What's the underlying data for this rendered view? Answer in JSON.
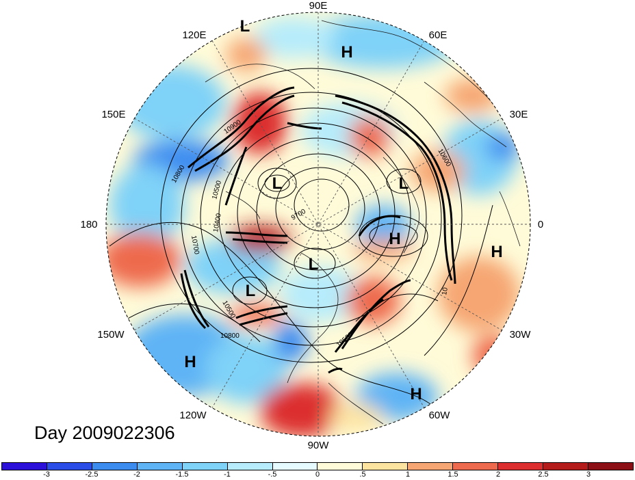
{
  "title": "Day 2009022306",
  "longitude_labels": [
    "90E",
    "60E",
    "30E",
    "0",
    "30W",
    "60W",
    "90W",
    "120W",
    "150W",
    "180",
    "150E",
    "120E"
  ],
  "pressure_systems": [
    "L",
    "H",
    "L",
    "L",
    "H",
    "H",
    "L",
    "L",
    "H",
    "H"
  ],
  "contour_labels": [
    "10900",
    "10800",
    "10500",
    "10400",
    "10700",
    "10500",
    "10800",
    "10500",
    "10600",
    "9700",
    "10"
  ],
  "colorbar": {
    "ticks": [
      "-3",
      "-2.5",
      "-2",
      "-1.5",
      "-1",
      "-.5",
      "0",
      ".5",
      "1",
      "1.5",
      "2",
      "2.5",
      "3"
    ],
    "colors": [
      "#2a10d8",
      "#2a4de8",
      "#3c8cf0",
      "#5fb4f5",
      "#7fd2f8",
      "#b6ecfb",
      "#e6fbff",
      "#fffbd8",
      "#fde3a0",
      "#f6a672",
      "#ee6a4e",
      "#dc2e2e",
      "#b41c1c",
      "#8c0f16"
    ]
  }
}
